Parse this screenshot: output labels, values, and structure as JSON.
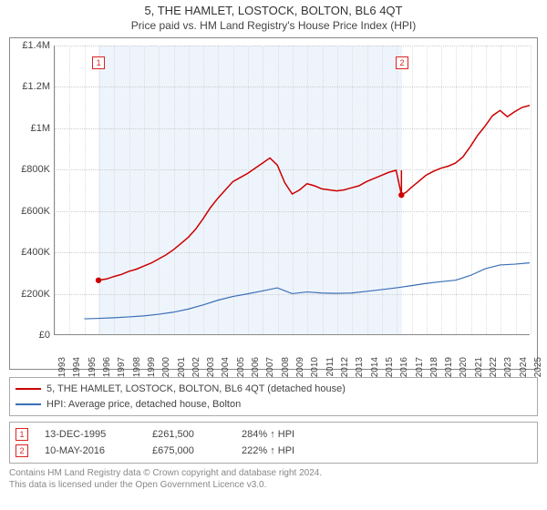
{
  "title": "5, THE HAMLET, LOSTOCK, BOLTON, BL6 4QT",
  "subtitle": "Price paid vs. HM Land Registry's House Price Index (HPI)",
  "chart": {
    "type": "line",
    "background_color": "#ffffff",
    "grid_color": "#dddddd",
    "shade_color": "#eef4fc",
    "x": {
      "min": 1993,
      "max": 2025,
      "ticks": [
        1993,
        1994,
        1995,
        1996,
        1997,
        1998,
        1999,
        2000,
        2001,
        2002,
        2003,
        2004,
        2005,
        2006,
        2007,
        2008,
        2009,
        2010,
        2011,
        2012,
        2013,
        2014,
        2015,
        2016,
        2017,
        2018,
        2019,
        2020,
        2021,
        2022,
        2023,
        2024,
        2025
      ]
    },
    "y": {
      "min": 0,
      "max": 1400000,
      "tick_step": 200000,
      "labels": [
        "£0",
        "£200K",
        "£400K",
        "£600K",
        "£800K",
        "£1M",
        "£1.2M",
        "£1.4M"
      ],
      "label_fontsize": 11
    },
    "shade_range": [
      1995.95,
      2016.36
    ],
    "series": [
      {
        "name": "property",
        "label": "5, THE HAMLET, LOSTOCK, BOLTON, BL6 4QT (detached house)",
        "color": "#cc0000",
        "line_width": 1.5,
        "points": [
          [
            1995.95,
            261500
          ],
          [
            1996.5,
            268000
          ],
          [
            1997,
            280000
          ],
          [
            1997.5,
            290000
          ],
          [
            1998,
            305000
          ],
          [
            1998.5,
            315000
          ],
          [
            1999,
            330000
          ],
          [
            1999.5,
            345000
          ],
          [
            2000,
            365000
          ],
          [
            2000.5,
            385000
          ],
          [
            2001,
            410000
          ],
          [
            2001.5,
            440000
          ],
          [
            2002,
            470000
          ],
          [
            2002.5,
            510000
          ],
          [
            2003,
            560000
          ],
          [
            2003.5,
            615000
          ],
          [
            2004,
            660000
          ],
          [
            2004.5,
            700000
          ],
          [
            2005,
            740000
          ],
          [
            2005.5,
            760000
          ],
          [
            2006,
            780000
          ],
          [
            2006.5,
            805000
          ],
          [
            2007,
            830000
          ],
          [
            2007.5,
            855000
          ],
          [
            2008,
            820000
          ],
          [
            2008.5,
            735000
          ],
          [
            2009,
            680000
          ],
          [
            2009.5,
            700000
          ],
          [
            2010,
            730000
          ],
          [
            2010.5,
            720000
          ],
          [
            2011,
            705000
          ],
          [
            2011.5,
            700000
          ],
          [
            2012,
            695000
          ],
          [
            2012.5,
            700000
          ],
          [
            2013,
            710000
          ],
          [
            2013.5,
            720000
          ],
          [
            2014,
            740000
          ],
          [
            2014.5,
            755000
          ],
          [
            2015,
            770000
          ],
          [
            2015.5,
            785000
          ],
          [
            2016,
            795000
          ],
          [
            2016.36,
            675000
          ],
          [
            2016.7,
            690000
          ],
          [
            2017,
            710000
          ],
          [
            2017.5,
            740000
          ],
          [
            2018,
            770000
          ],
          [
            2018.5,
            790000
          ],
          [
            2019,
            805000
          ],
          [
            2019.5,
            815000
          ],
          [
            2020,
            830000
          ],
          [
            2020.5,
            860000
          ],
          [
            2021,
            910000
          ],
          [
            2021.5,
            965000
          ],
          [
            2022,
            1010000
          ],
          [
            2022.5,
            1060000
          ],
          [
            2023,
            1085000
          ],
          [
            2023.5,
            1055000
          ],
          [
            2024,
            1080000
          ],
          [
            2024.5,
            1100000
          ],
          [
            2025,
            1110000
          ]
        ]
      },
      {
        "name": "hpi",
        "label": "HPI: Average price, detached house, Bolton",
        "color": "#3b6fb6",
        "line_width": 1.2,
        "points": [
          [
            1995,
            75000
          ],
          [
            1996,
            77000
          ],
          [
            1997,
            80000
          ],
          [
            1998,
            84000
          ],
          [
            1999,
            89000
          ],
          [
            2000,
            97000
          ],
          [
            2001,
            107000
          ],
          [
            2002,
            122000
          ],
          [
            2003,
            142000
          ],
          [
            2004,
            165000
          ],
          [
            2005,
            183000
          ],
          [
            2006,
            196000
          ],
          [
            2007,
            210000
          ],
          [
            2008,
            225000
          ],
          [
            2009,
            197000
          ],
          [
            2010,
            205000
          ],
          [
            2011,
            200000
          ],
          [
            2012,
            198000
          ],
          [
            2013,
            200000
          ],
          [
            2014,
            208000
          ],
          [
            2015,
            216000
          ],
          [
            2016,
            225000
          ],
          [
            2017,
            235000
          ],
          [
            2018,
            246000
          ],
          [
            2019,
            255000
          ],
          [
            2020,
            262000
          ],
          [
            2021,
            285000
          ],
          [
            2022,
            318000
          ],
          [
            2023,
            336000
          ],
          [
            2024,
            340000
          ],
          [
            2025,
            346000
          ]
        ]
      }
    ],
    "markers": [
      {
        "id": "1",
        "x": 1995.95,
        "y": 261500,
        "color": "#cc0000"
      },
      {
        "id": "2",
        "x": 2016.36,
        "y": 675000,
        "color": "#cc0000"
      }
    ]
  },
  "legend": {
    "items": [
      {
        "color": "#cc0000",
        "label": "5, THE HAMLET, LOSTOCK, BOLTON, BL6 4QT (detached house)"
      },
      {
        "color": "#3b6fb6",
        "label": "HPI: Average price, detached house, Bolton"
      }
    ]
  },
  "events": [
    {
      "id": "1",
      "date": "13-DEC-1995",
      "price": "£261,500",
      "change": "284% ↑ HPI"
    },
    {
      "id": "2",
      "date": "10-MAY-2016",
      "price": "£675,000",
      "change": "222% ↑ HPI"
    }
  ],
  "footnote": {
    "line1": "Contains HM Land Registry data © Crown copyright and database right 2024.",
    "line2": "This data is licensed under the Open Government Licence v3.0."
  }
}
